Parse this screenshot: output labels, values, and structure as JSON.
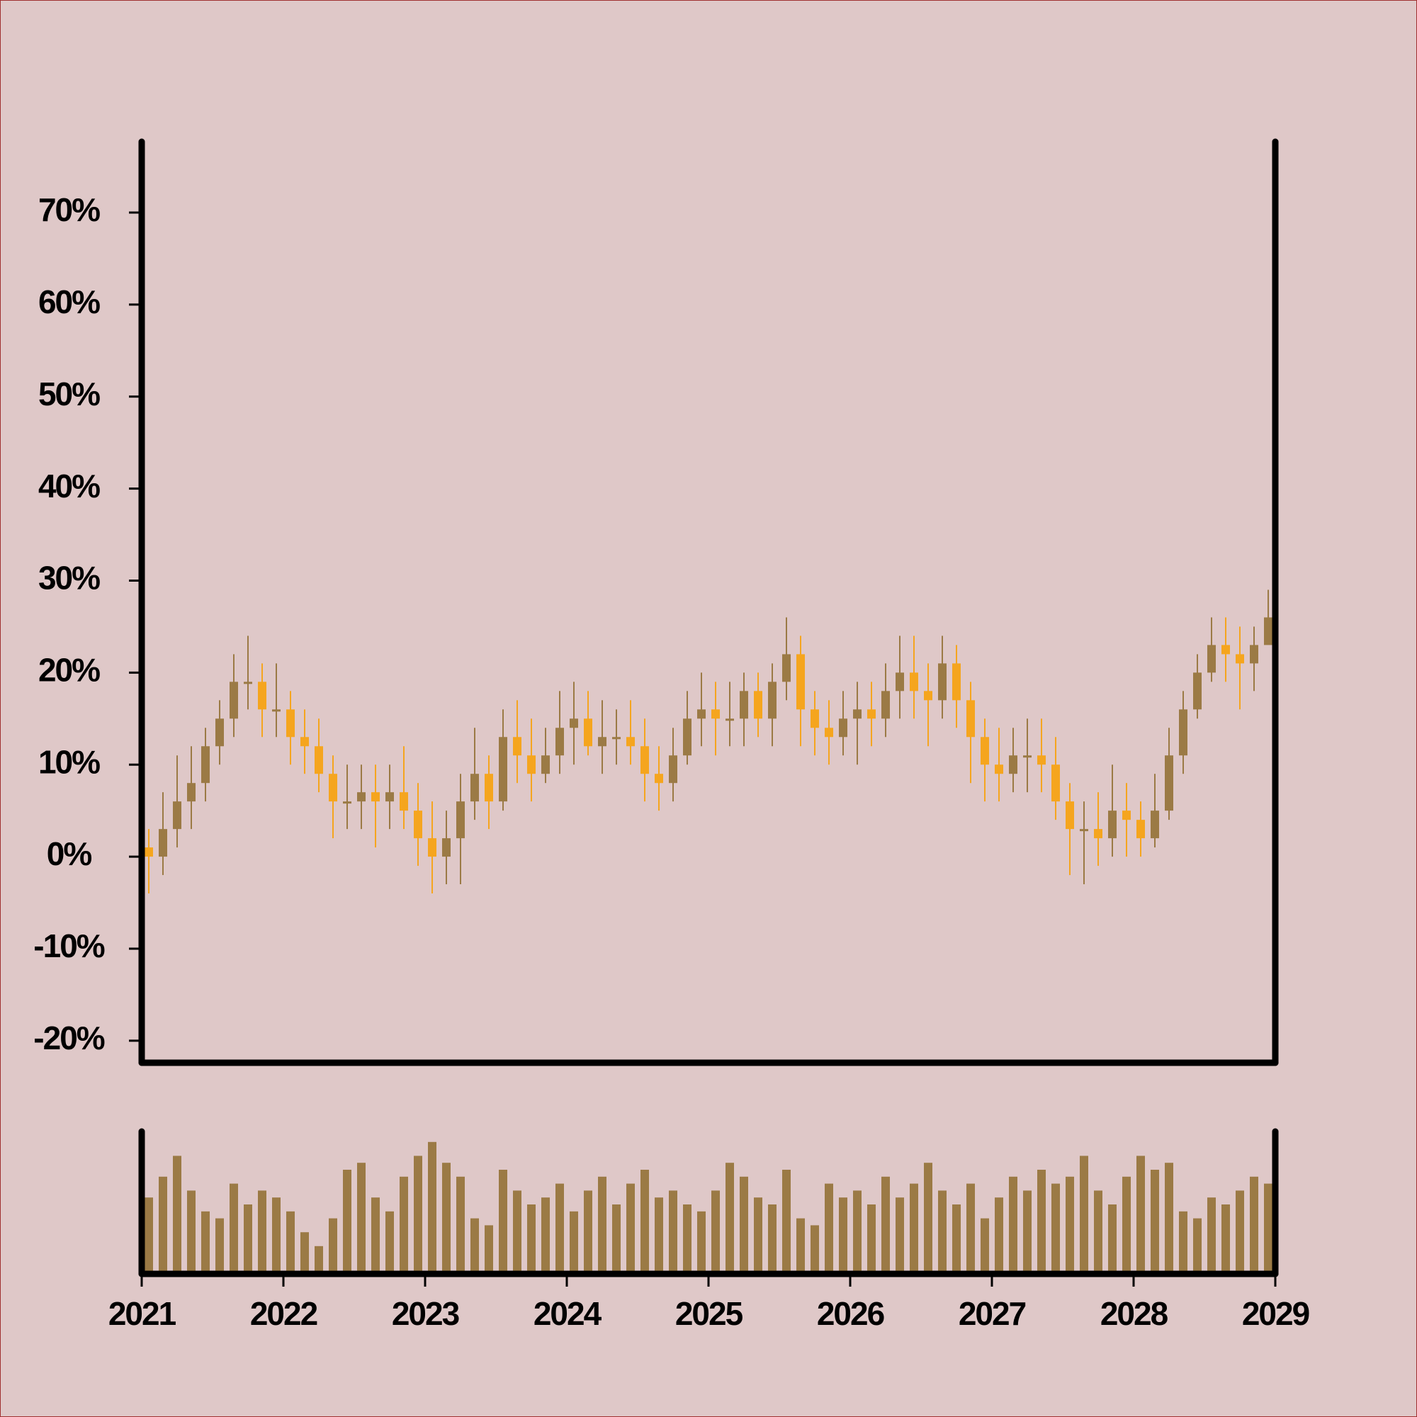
{
  "chart_data": {
    "type": "candlestick",
    "x": [
      2021.05,
      2021.15,
      2021.25,
      2021.35,
      2021.45,
      2021.55,
      2021.65,
      2021.75,
      2021.85,
      2021.95,
      2022.05,
      2022.15,
      2022.25,
      2022.35,
      2022.45,
      2022.55,
      2022.65,
      2022.75,
      2022.85,
      2022.95,
      2023.05,
      2023.15,
      2023.25,
      2023.35,
      2023.45,
      2023.55,
      2023.65,
      2023.75,
      2023.85,
      2023.95,
      2024.05,
      2024.15,
      2024.25,
      2024.35,
      2024.45,
      2024.55,
      2024.65,
      2024.75,
      2024.85,
      2024.95,
      2025.05,
      2025.15,
      2025.25,
      2025.35,
      2025.45,
      2025.55,
      2025.65,
      2025.75,
      2025.85,
      2025.95,
      2026.05,
      2026.15,
      2026.25,
      2026.35,
      2026.45,
      2026.55,
      2026.65,
      2026.75,
      2026.85,
      2026.95,
      2027.05,
      2027.15,
      2027.25,
      2027.35,
      2027.45,
      2027.55,
      2027.65,
      2027.75,
      2027.85,
      2027.95,
      2028.05,
      2028.15,
      2028.25,
      2028.35,
      2028.45,
      2028.55,
      2028.65,
      2028.75,
      2028.85,
      2028.95
    ],
    "open": [
      1,
      0,
      3,
      6,
      8,
      12,
      15,
      19,
      19,
      16,
      16,
      13,
      12,
      9,
      6,
      6,
      7,
      6,
      7,
      5,
      2,
      0,
      2,
      6,
      9,
      6,
      13,
      11,
      9,
      11,
      14,
      15,
      12,
      13,
      13,
      12,
      9,
      8,
      11,
      15,
      16,
      15,
      15,
      18,
      15,
      19,
      22,
      16,
      14,
      13,
      15,
      16,
      15,
      18,
      20,
      18,
      17,
      21,
      17,
      13,
      10,
      9,
      11,
      11,
      10,
      6,
      3,
      3,
      2,
      5,
      4,
      2,
      5,
      11,
      16,
      20,
      23,
      22,
      21,
      23
    ],
    "high": [
      3,
      7,
      11,
      12,
      14,
      17,
      22,
      24,
      21,
      21,
      18,
      16,
      15,
      11,
      10,
      10,
      10,
      10,
      12,
      8,
      6,
      5,
      9,
      14,
      11,
      16,
      17,
      15,
      14,
      18,
      19,
      18,
      17,
      16,
      17,
      15,
      12,
      14,
      18,
      20,
      19,
      19,
      20,
      20,
      21,
      26,
      24,
      18,
      17,
      18,
      19,
      19,
      21,
      24,
      24,
      21,
      24,
      23,
      19,
      15,
      14,
      14,
      15,
      15,
      13,
      8,
      6,
      7,
      10,
      8,
      6,
      9,
      14,
      18,
      22,
      26,
      26,
      25,
      25,
      29
    ],
    "low": [
      -4,
      -2,
      1,
      3,
      6,
      10,
      13,
      16,
      13,
      13,
      10,
      9,
      7,
      2,
      3,
      3,
      1,
      3,
      3,
      -1,
      -4,
      -3,
      -3,
      4,
      3,
      5,
      8,
      6,
      8,
      9,
      10,
      11,
      9,
      10,
      10,
      6,
      5,
      6,
      10,
      12,
      11,
      12,
      12,
      13,
      12,
      17,
      12,
      11,
      10,
      11,
      10,
      12,
      13,
      15,
      15,
      12,
      15,
      14,
      8,
      6,
      6,
      7,
      7,
      7,
      4,
      -2,
      -3,
      -1,
      0,
      0,
      0,
      1,
      4,
      9,
      15,
      19,
      19,
      16,
      18,
      24
    ],
    "close": [
      0,
      3,
      6,
      8,
      12,
      15,
      19,
      19,
      16,
      16,
      13,
      12,
      9,
      6,
      6,
      7,
      6,
      7,
      5,
      2,
      0,
      2,
      6,
      9,
      6,
      13,
      11,
      9,
      11,
      14,
      15,
      12,
      13,
      13,
      12,
      9,
      8,
      11,
      15,
      16,
      15,
      15,
      18,
      15,
      19,
      22,
      16,
      14,
      13,
      15,
      16,
      15,
      18,
      20,
      18,
      17,
      21,
      17,
      13,
      10,
      9,
      11,
      11,
      10,
      6,
      3,
      3,
      2,
      5,
      4,
      2,
      5,
      11,
      16,
      20,
      23,
      22,
      21,
      23,
      26
    ],
    "volume": [
      55,
      70,
      85,
      60,
      45,
      40,
      65,
      50,
      60,
      55,
      45,
      30,
      20,
      40,
      75,
      80,
      55,
      45,
      70,
      85,
      95,
      80,
      70,
      40,
      35,
      75,
      60,
      50,
      55,
      65,
      45,
      60,
      70,
      50,
      65,
      75,
      55,
      60,
      50,
      45,
      60,
      80,
      70,
      55,
      50,
      75,
      40,
      35,
      65,
      55,
      60,
      50,
      70,
      55,
      65,
      80,
      60,
      50,
      65,
      40,
      55,
      70,
      60,
      75,
      65,
      70,
      85,
      60,
      50,
      70,
      85,
      75,
      80,
      45,
      40,
      55,
      50,
      60,
      70,
      65
    ],
    "up_color": "#9b7a45",
    "down_color": "#f5a51e",
    "volume_color": "#9b7a45",
    "xlim": [
      2021,
      2029
    ],
    "xticks": [
      2021,
      2022,
      2023,
      2024,
      2025,
      2026,
      2027,
      2028,
      2029
    ],
    "ylim": [
      -22.4,
      77.7
    ],
    "yticks": [
      {
        "value": -20,
        "label": "-20%"
      },
      {
        "value": -10,
        "label": "-10%"
      },
      {
        "value": 0,
        "label": "0%"
      },
      {
        "value": 10,
        "label": "10%"
      },
      {
        "value": 20,
        "label": "20%"
      },
      {
        "value": 30,
        "label": "30%"
      },
      {
        "value": 40,
        "label": "40%"
      },
      {
        "value": 50,
        "label": "50%"
      },
      {
        "value": 60,
        "label": "60%"
      },
      {
        "value": 70,
        "label": "70%"
      }
    ],
    "volume_ylim": [
      0,
      100
    ]
  }
}
